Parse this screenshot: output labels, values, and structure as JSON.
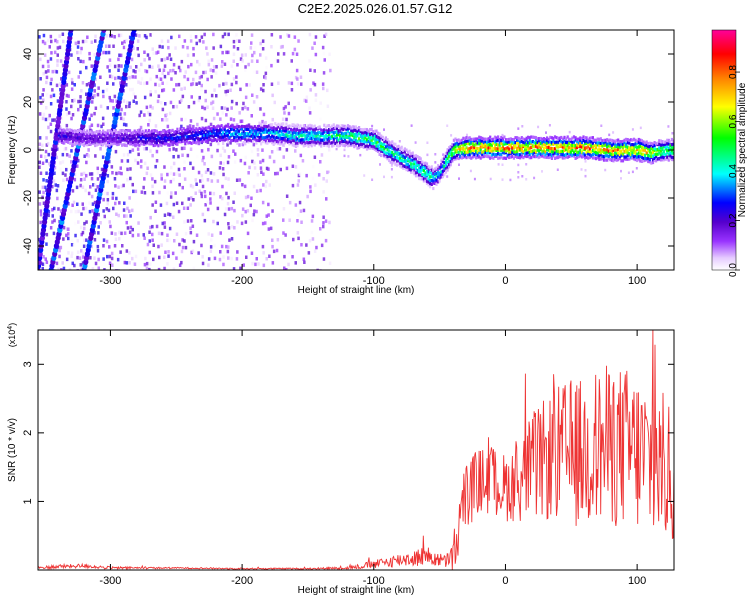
{
  "title": "C2E2.2025.026.01.57.G12",
  "chart_data": [
    {
      "type": "heatmap",
      "xlabel": "Height of straight line (km)",
      "ylabel": "Frequency (Hz)",
      "xlim": [
        -355,
        128
      ],
      "ylim": [
        -50,
        50
      ],
      "x_ticks": [
        -300,
        -200,
        -100,
        0,
        100
      ],
      "y_ticks": [
        -40,
        -20,
        0,
        20,
        40
      ],
      "colorbar": {
        "label": "Normalized spectral amplitude",
        "range": [
          0,
          0.97
        ],
        "ticks": [
          0.0,
          0.2,
          0.4,
          0.6,
          0.8
        ],
        "tick_labels": [
          "0.0",
          "0.2",
          "0.4",
          "0.6",
          "0.8"
        ],
        "colormap": [
          "#ffffff",
          "#e6ccff",
          "#9933ff",
          "#5500cc",
          "#0000ff",
          "#00ffff",
          "#00ff00",
          "#ffff00",
          "#ff8000",
          "#ff0000",
          "#ff0099"
        ]
      },
      "ridge": {
        "x": [
          -340,
          -320,
          -300,
          -280,
          -260,
          -240,
          -220,
          -200,
          -180,
          -160,
          -140,
          -120,
          -100,
          -90,
          -80,
          -70,
          -60,
          -55,
          -50,
          -45,
          -40,
          -30,
          -20,
          -10,
          0,
          20,
          40,
          60,
          80,
          100,
          110,
          120,
          128
        ],
        "y": [
          6,
          5,
          5,
          5,
          5,
          6,
          7,
          7,
          7,
          6,
          6,
          6,
          4,
          0,
          -3,
          -6,
          -10,
          -12,
          -9,
          -4,
          0,
          1,
          1,
          1,
          1,
          1,
          1,
          1,
          0,
          0,
          -1,
          0,
          0
        ],
        "peak": [
          0.25,
          0.2,
          0.2,
          0.25,
          0.3,
          0.3,
          0.35,
          0.4,
          0.4,
          0.45,
          0.45,
          0.55,
          0.55,
          0.5,
          0.5,
          0.5,
          0.5,
          0.45,
          0.4,
          0.5,
          0.7,
          0.8,
          0.85,
          0.85,
          0.85,
          0.85,
          0.85,
          0.85,
          0.8,
          0.8,
          0.7,
          0.6,
          0.6
        ]
      },
      "streaks": [
        {
          "x": [
            -345,
            -305
          ],
          "y": [
            -50,
            50
          ],
          "peak": 0.3
        },
        {
          "x": [
            -320,
            -282
          ],
          "y": [
            -50,
            50
          ],
          "peak": 0.3
        },
        {
          "x": [
            -355,
            -330
          ],
          "y": [
            -50,
            50
          ],
          "peak": 0.25
        }
      ],
      "noise_region_x": [
        -355,
        -135
      ]
    },
    {
      "type": "line",
      "xlabel": "Height of straight line (km)",
      "ylabel": "SNR (10 * v/v)",
      "y_multiplier": "(x10",
      "y_multiplier_exp": "4",
      "y_multiplier_close": ")",
      "xlim": [
        -355,
        128
      ],
      "ylim": [
        0,
        3.5
      ],
      "x_ticks": [
        -300,
        -200,
        -100,
        0,
        100
      ],
      "y_ticks": [
        1,
        2,
        3
      ],
      "series": [
        {
          "color": "#ee3333",
          "x": [
            -355,
            -340,
            -320,
            -300,
            -250,
            -200,
            -150,
            -120,
            -100,
            -80,
            -60,
            -50,
            -45,
            -40,
            -35,
            -30,
            -20,
            -10,
            0,
            10,
            20,
            30,
            40,
            50,
            60,
            70,
            80,
            90,
            100,
            110,
            120,
            128
          ],
          "y": [
            0.03,
            0.05,
            0.06,
            0.03,
            0.03,
            0.02,
            0.02,
            0.03,
            0.08,
            0.15,
            0.2,
            0.15,
            0.12,
            0.2,
            0.6,
            1.1,
            1.3,
            1.3,
            1.2,
            1.3,
            1.5,
            1.6,
            1.7,
            1.7,
            1.7,
            1.8,
            1.8,
            1.8,
            1.7,
            1.6,
            1.5,
            1.3
          ],
          "amp": [
            0.02,
            0.03,
            0.03,
            0.02,
            0.01,
            0.01,
            0.01,
            0.02,
            0.06,
            0.1,
            0.15,
            0.1,
            0.1,
            0.25,
            0.6,
            0.5,
            0.5,
            0.5,
            0.5,
            0.6,
            0.8,
            0.9,
            1.0,
            1.1,
            1.1,
            1.2,
            1.2,
            1.2,
            1.2,
            1.2,
            1.1,
            1.0
          ]
        }
      ]
    }
  ]
}
